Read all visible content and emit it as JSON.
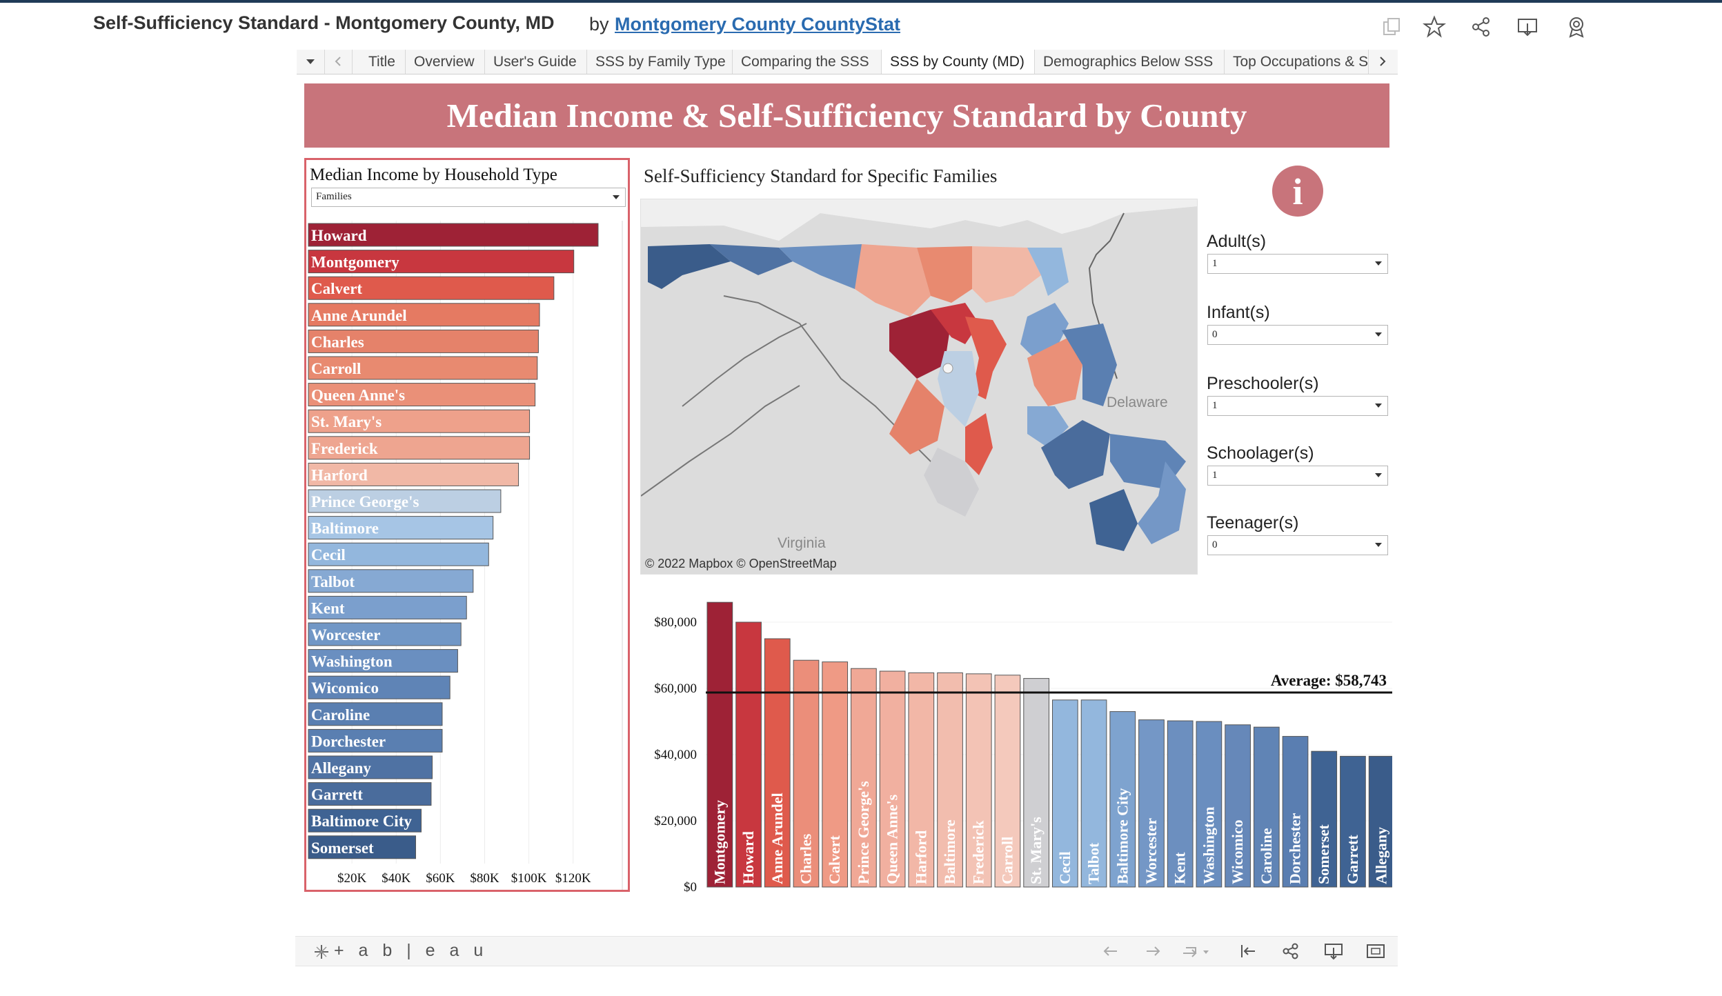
{
  "header": {
    "title": "Self-Sufficiency Standard - Montgomery County, MD",
    "by": "by",
    "author": "Montgomery County CountyStat",
    "icons": [
      "copy-icon",
      "star-icon",
      "share-icon",
      "download-icon",
      "badge-icon"
    ]
  },
  "tabs": {
    "items": [
      "Title",
      "Overview",
      "User's Guide",
      "SSS by Family Type",
      "Comparing the SSS",
      "SSS by County (MD)",
      "Demographics Below SSS",
      "Top Occupations & S"
    ],
    "active": "SSS by County (MD)"
  },
  "banner": {
    "title": "Median Income & Self-Sufficiency Standard by County"
  },
  "left_panel": {
    "title": "Median Income by Household Type",
    "select_value": "Families"
  },
  "map": {
    "title": "Self-Sufficiency Standard for Specific Families",
    "labels": {
      "delaware": "Delaware",
      "virginia": "Virginia"
    },
    "credit": "© 2022 Mapbox  © OpenStreetMap"
  },
  "info_icon": {
    "glyph": "i"
  },
  "filters": [
    {
      "label": "Adult(s)",
      "value": "1"
    },
    {
      "label": "Infant(s)",
      "value": "0"
    },
    {
      "label": "Preschooler(s)",
      "value": "1"
    },
    {
      "label": "Schoolager(s)",
      "value": "1"
    },
    {
      "label": "Teenager(s)",
      "value": "0"
    }
  ],
  "chart_data": [
    {
      "type": "bar",
      "orientation": "horizontal",
      "title": "Median Income by Household Type",
      "categories": [
        "Howard",
        "Montgomery",
        "Calvert",
        "Anne Arundel",
        "Charles",
        "Carroll",
        "Queen Anne's",
        "St. Mary's",
        "Frederick",
        "Harford",
        "Prince George's",
        "Baltimore",
        "Cecil",
        "Talbot",
        "Kent",
        "Worcester",
        "Washington",
        "Wicomico",
        "Caroline",
        "Dorchester",
        "Allegany",
        "Garrett",
        "Baltimore City",
        "Somerset"
      ],
      "values": [
        131000,
        120000,
        111000,
        104500,
        104000,
        103500,
        102500,
        100000,
        100000,
        95000,
        87000,
        83500,
        81500,
        74500,
        71500,
        69000,
        67500,
        64000,
        60500,
        60500,
        56000,
        55500,
        51000,
        48500
      ],
      "colors": [
        "#9e2236",
        "#c8373f",
        "#df5a4c",
        "#e57a62",
        "#e5826a",
        "#e88a70",
        "#ea9078",
        "#eea18b",
        "#eea590",
        "#f1b8a6",
        "#bccfe3",
        "#a6c5e5",
        "#93b7dd",
        "#86a9d3",
        "#7b9fcd",
        "#7197c6",
        "#6a8fc0",
        "#5f84b6",
        "#5a7fb1",
        "#5a7fb1",
        "#4f72a3",
        "#4a6c9c",
        "#3f6393",
        "#3a5c8a"
      ],
      "xlabel": "",
      "ticks": [
        "$20K",
        "$40K",
        "$60K",
        "$80K",
        "$100K",
        "$120K"
      ],
      "tick_values": [
        20000,
        40000,
        60000,
        80000,
        100000,
        120000
      ],
      "xlim": [
        0,
        136000
      ]
    },
    {
      "type": "bar",
      "orientation": "vertical",
      "title": "",
      "categories": [
        "Montgomery",
        "Howard",
        "Anne Arundel",
        "Charles",
        "Calvert",
        "Prince George's",
        "Queen Anne's",
        "Harford",
        "Baltimore",
        "Frederick",
        "Carroll",
        "St. Mary's",
        "Cecil",
        "Talbot",
        "Baltimore City",
        "Worcester",
        "Kent",
        "Washington",
        "Wicomico",
        "Caroline",
        "Dorchester",
        "Somerset",
        "Garrett",
        "Allegany"
      ],
      "values": [
        86000,
        80000,
        75000,
        68500,
        68000,
        66000,
        65200,
        64700,
        64700,
        64400,
        64000,
        63000,
        56500,
        56500,
        53000,
        50500,
        50200,
        50000,
        49000,
        48300,
        45500,
        41000,
        39500,
        39500
      ],
      "colors": [
        "#9e2236",
        "#c8373f",
        "#df5a4c",
        "#eb8e7a",
        "#ef9a85",
        "#f0a896",
        "#f1b0a0",
        "#f2b7a7",
        "#f2bdae",
        "#f3c3b5",
        "#f4c9bc",
        "#cfcfd2",
        "#93b7dd",
        "#93b7dd",
        "#7ea3cf",
        "#7497c6",
        "#6c8fbf",
        "#6a8ebf",
        "#6688b9",
        "#6084b5",
        "#5a7eb1",
        "#3f6393",
        "#3f6393",
        "#3a5c8a"
      ],
      "ylabel": "",
      "ticks": [
        "$0",
        "$20,000",
        "$40,000",
        "$60,000",
        "$80,000"
      ],
      "tick_values": [
        0,
        20000,
        40000,
        60000,
        80000
      ],
      "ylim": [
        0,
        86000
      ],
      "average_label": "Average: $58,743",
      "average_value": 58743
    }
  ],
  "toolbar": {
    "logo": "+ a b | e a u",
    "icons": [
      "undo-icon",
      "redo-icon",
      "revert-icon",
      "reset-icon",
      "share-icon",
      "download-icon",
      "fullscreen-icon"
    ]
  }
}
